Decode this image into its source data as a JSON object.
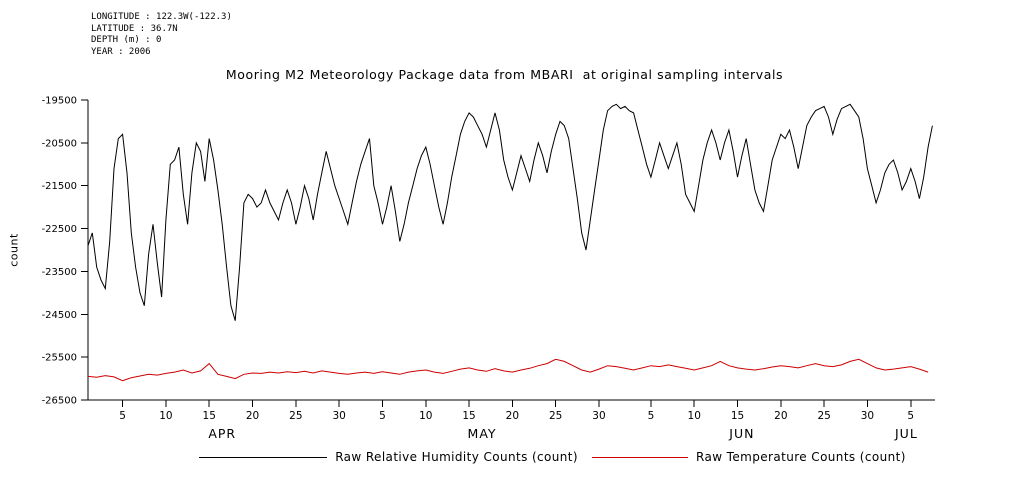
{
  "header": {
    "info_lines": [
      "LONGITUDE : 122.3W(-122.3)",
      "LATITUDE : 36.7N",
      "DEPTH (m) : 0",
      "YEAR : 2006"
    ]
  },
  "chart_data": {
    "type": "line",
    "title": "Mooring M2 Meteorology Package data from MBARI  at original sampling intervals",
    "xlabel": "",
    "ylabel": "count",
    "ylim": [
      -26500,
      -19500
    ],
    "y_ticks": [
      -19500,
      -20500,
      -21500,
      -22500,
      -23500,
      -24500,
      -25500,
      -26500
    ],
    "grid": false,
    "legend_position": "bottom",
    "x_range_days": [
      0,
      97.8
    ],
    "x_axis": {
      "months": [
        {
          "label": "APR",
          "start_day": 0,
          "tick_dates": [
            5,
            10,
            15,
            20,
            25,
            30
          ],
          "label_center_day": 15.5
        },
        {
          "label": "MAY",
          "start_day": 30,
          "tick_dates": [
            5,
            10,
            15,
            20,
            25,
            30
          ],
          "label_center_day": 45.5
        },
        {
          "label": "JUN",
          "start_day": 61,
          "tick_dates": [
            5,
            10,
            15,
            20,
            25,
            30
          ],
          "label_center_day": 75.5
        },
        {
          "label": "JUL",
          "start_day": 91,
          "tick_dates": [
            5
          ],
          "label_center_day": 94.5
        }
      ]
    },
    "series": [
      {
        "name": "Raw Relative Humidity Counts (count)",
        "color": "#000000",
        "x_start": 0,
        "x_step": 0.5,
        "values": [
          -22900,
          -22600,
          -23400,
          -23700,
          -23900,
          -22800,
          -21100,
          -20400,
          -20300,
          -21200,
          -22600,
          -23400,
          -24000,
          -24300,
          -23100,
          -22400,
          -23300,
          -24100,
          -22300,
          -21000,
          -20900,
          -20600,
          -21700,
          -22400,
          -21200,
          -20500,
          -20700,
          -21400,
          -20400,
          -20900,
          -21600,
          -22400,
          -23400,
          -24300,
          -24650,
          -23400,
          -21900,
          -21700,
          -21800,
          -22000,
          -21900,
          -21600,
          -21900,
          -22100,
          -22300,
          -21900,
          -21600,
          -21900,
          -22400,
          -22000,
          -21500,
          -21800,
          -22300,
          -21700,
          -21200,
          -20700,
          -21100,
          -21500,
          -21800,
          -22100,
          -22400,
          -21900,
          -21400,
          -21000,
          -20700,
          -20400,
          -21500,
          -21900,
          -22400,
          -22000,
          -21500,
          -22100,
          -22800,
          -22400,
          -21900,
          -21500,
          -21100,
          -20800,
          -20600,
          -21000,
          -21500,
          -22000,
          -22400,
          -21900,
          -21300,
          -20800,
          -20300,
          -20000,
          -19800,
          -19900,
          -20100,
          -20300,
          -20600,
          -20200,
          -19800,
          -20200,
          -20900,
          -21300,
          -21600,
          -21200,
          -20800,
          -21100,
          -21400,
          -20900,
          -20500,
          -20800,
          -21200,
          -20700,
          -20300,
          -20000,
          -20100,
          -20400,
          -21100,
          -21800,
          -22600,
          -23000,
          -22300,
          -21600,
          -20900,
          -20200,
          -19750,
          -19650,
          -19600,
          -19700,
          -19650,
          -19750,
          -19800,
          -20200,
          -20600,
          -21000,
          -21300,
          -20900,
          -20500,
          -20800,
          -21100,
          -20800,
          -20500,
          -21000,
          -21700,
          -21900,
          -22100,
          -21500,
          -20900,
          -20500,
          -20200,
          -20500,
          -20900,
          -20500,
          -20200,
          -20700,
          -21300,
          -20800,
          -20400,
          -21000,
          -21600,
          -21900,
          -22100,
          -21500,
          -20900,
          -20600,
          -20300,
          -20400,
          -20200,
          -20600,
          -21100,
          -20600,
          -20100,
          -19900,
          -19750,
          -19700,
          -19650,
          -19900,
          -20300,
          -19950,
          -19700,
          -19650,
          -19600,
          -19750,
          -19900,
          -20400,
          -21100,
          -21500,
          -21900,
          -21600,
          -21200,
          -21000,
          -20900,
          -21200,
          -21600,
          -21400,
          -21100,
          -21400,
          -21800,
          -21300,
          -20600,
          -20100
        ]
      },
      {
        "name": "Raw Temperature Counts (count)",
        "color": "#cc0000",
        "x_start": 0,
        "x_step": 1,
        "values": [
          -25950,
          -25970,
          -25930,
          -25960,
          -26050,
          -25980,
          -25940,
          -25900,
          -25920,
          -25880,
          -25850,
          -25800,
          -25870,
          -25820,
          -25650,
          -25900,
          -25950,
          -26000,
          -25900,
          -25870,
          -25880,
          -25850,
          -25870,
          -25840,
          -25860,
          -25830,
          -25870,
          -25820,
          -25850,
          -25880,
          -25900,
          -25870,
          -25850,
          -25880,
          -25840,
          -25870,
          -25900,
          -25850,
          -25820,
          -25800,
          -25850,
          -25880,
          -25830,
          -25780,
          -25750,
          -25800,
          -25830,
          -25770,
          -25820,
          -25850,
          -25800,
          -25760,
          -25700,
          -25650,
          -25550,
          -25600,
          -25700,
          -25800,
          -25850,
          -25780,
          -25700,
          -25720,
          -25760,
          -25800,
          -25750,
          -25700,
          -25720,
          -25680,
          -25720,
          -25760,
          -25800,
          -25750,
          -25700,
          -25600,
          -25700,
          -25750,
          -25780,
          -25800,
          -25770,
          -25730,
          -25700,
          -25720,
          -25750,
          -25700,
          -25650,
          -25700,
          -25720,
          -25680,
          -25600,
          -25550,
          -25650,
          -25750,
          -25800,
          -25780,
          -25750,
          -25720,
          -25780,
          -25850
        ]
      }
    ]
  }
}
